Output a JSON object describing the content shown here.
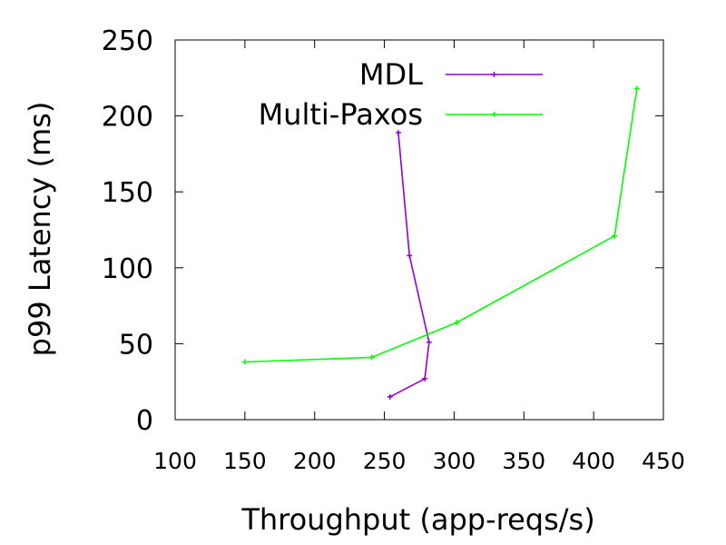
{
  "chart_data": {
    "type": "line",
    "title": "",
    "xlabel": "Throughput (app-reqs/s)",
    "ylabel": "p99 Latency (ms)",
    "xlim": [
      100,
      450
    ],
    "ylim": [
      0,
      250
    ],
    "xticks": [
      100,
      150,
      200,
      250,
      300,
      350,
      400,
      450
    ],
    "yticks": [
      0,
      50,
      100,
      150,
      200,
      250
    ],
    "grid": false,
    "legend_position": "top-right",
    "series": [
      {
        "name": "MDL",
        "color": "#9400d3",
        "points": [
          {
            "x": 254,
            "y": 15
          },
          {
            "x": 279,
            "y": 27
          },
          {
            "x": 282,
            "y": 51
          },
          {
            "x": 268,
            "y": 108
          },
          {
            "x": 260,
            "y": 189
          }
        ]
      },
      {
        "name": "Multi-Paxos",
        "color": "#00ff00",
        "points": [
          {
            "x": 150,
            "y": 38
          },
          {
            "x": 241,
            "y": 41
          },
          {
            "x": 302,
            "y": 64
          },
          {
            "x": 415,
            "y": 121
          },
          {
            "x": 431,
            "y": 218
          }
        ]
      }
    ]
  }
}
